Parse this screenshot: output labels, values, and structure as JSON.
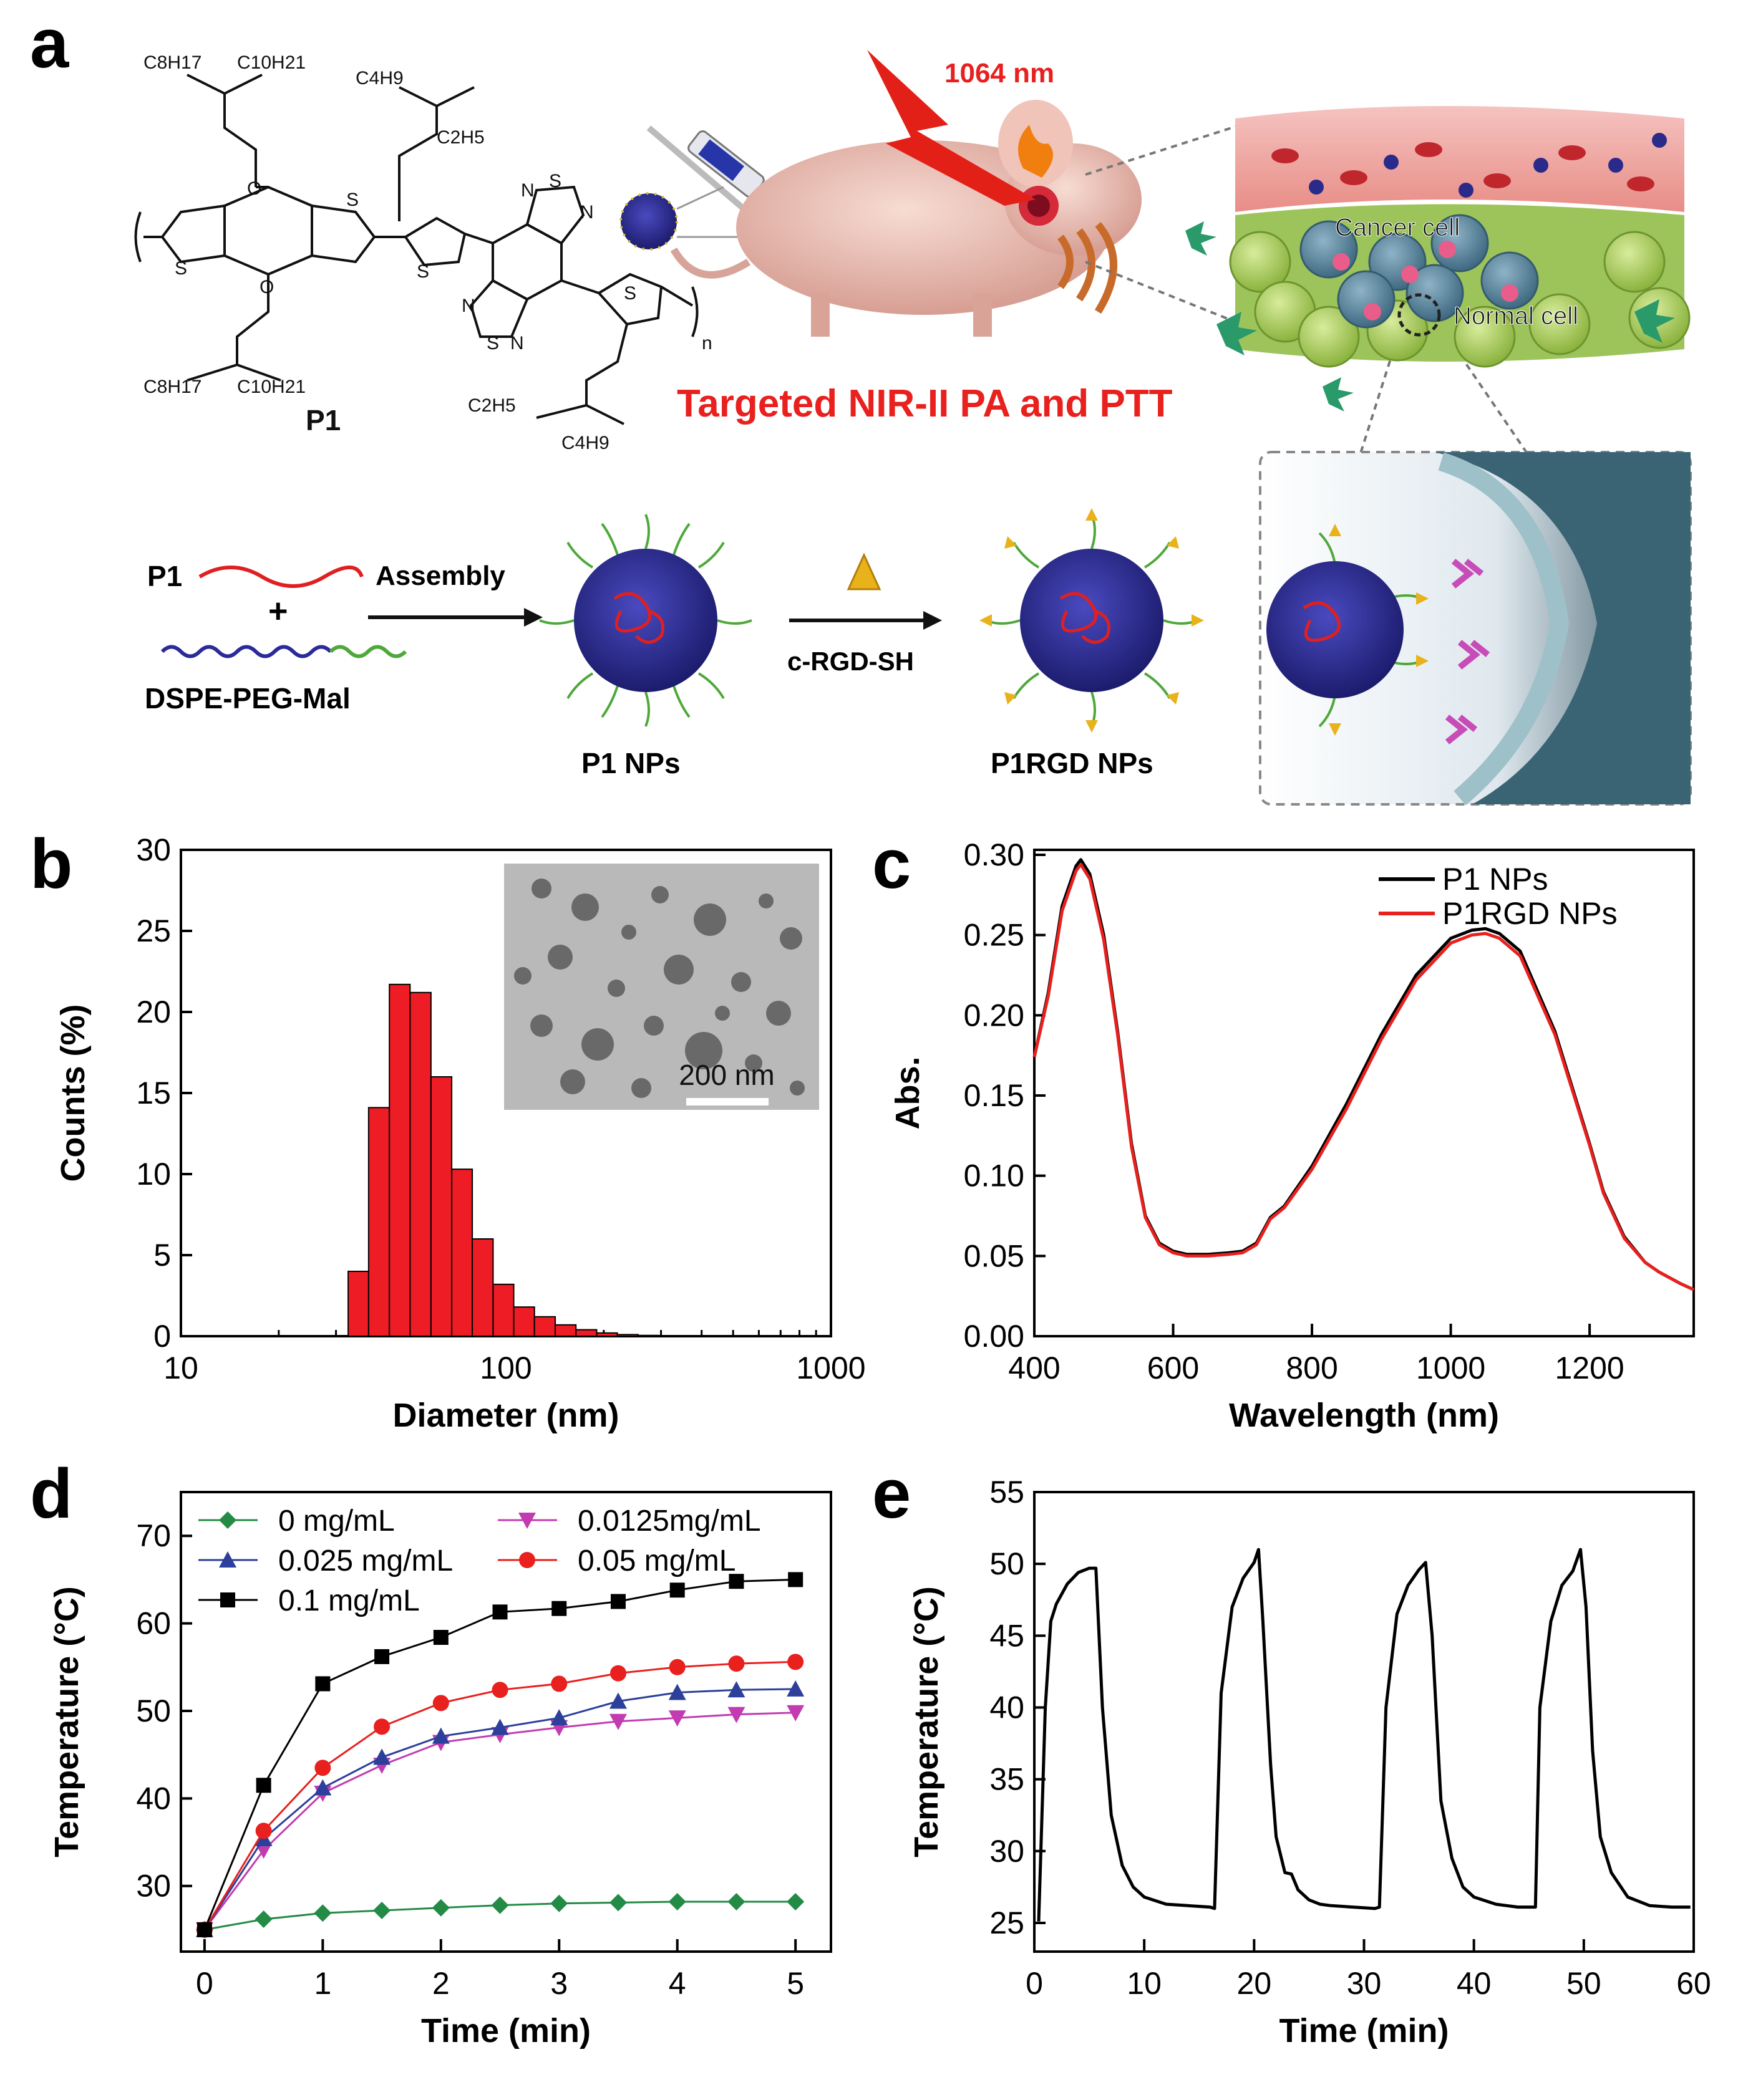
{
  "panel_letters": {
    "a": "a",
    "b": "b",
    "c": "c",
    "d": "d",
    "e": "e"
  },
  "panel_a": {
    "chem": {
      "label": "P1",
      "sub_c8h17": "C8H17",
      "sub_c10h21": "C10H21",
      "sub_c4h9": "C4H9",
      "sub_c2h5": "C2H5",
      "atom_o": "O",
      "atom_s": "S",
      "atom_n": "N",
      "repeat_n": "n"
    },
    "laser": "1064 nm",
    "caption": "Targeted NIR-II PA and PTT",
    "tissue_labels": {
      "cancer": "Cancer cell",
      "normal": "Normal cell"
    },
    "scheme": {
      "p1": "P1",
      "plus": "+",
      "dspe": "DSPE-PEG-Mal",
      "assembly": "Assembly",
      "rgd": "c-RGD-SH",
      "p1nps": "P1 NPs",
      "p1rgdnps": "P1RGD NPs"
    },
    "colors": {
      "caption": "#e8201e",
      "polymer": "#e02020",
      "peg": "#4fa83a",
      "dspe": "#2a2a9a",
      "core": "#2a2a9a"
    }
  },
  "chart_data": [
    {
      "panel": "b",
      "type": "bar",
      "xlabel": "Diameter (nm)",
      "ylabel": "Counts (%)",
      "xscale": "log",
      "xlim": [
        10,
        1000
      ],
      "ylim": [
        0,
        30
      ],
      "xticks": [
        "10",
        "100",
        "1000"
      ],
      "yticks": [
        "0",
        "5",
        "10",
        "15",
        "20",
        "25",
        "30"
      ],
      "bin_edges": [
        32.7,
        37.8,
        43.8,
        50.7,
        58.8,
        68.1,
        78.8,
        91.3,
        105.7,
        122.4,
        141.8,
        164.2,
        190.2,
        220.2,
        255.0,
        295.3
      ],
      "values": [
        4.0,
        14.1,
        21.7,
        21.2,
        16.0,
        10.3,
        6.0,
        3.2,
        1.8,
        1.2,
        0.7,
        0.4,
        0.2,
        0.1,
        0.05
      ],
      "color": "#ee1c24",
      "inset": {
        "scale_bar": "200 nm"
      }
    },
    {
      "panel": "c",
      "type": "line",
      "xlabel": "Wavelength (nm)",
      "ylabel": "Abs.",
      "xlim": [
        400,
        1350
      ],
      "ylim": [
        0.0,
        0.3
      ],
      "xticks": [
        "400",
        "600",
        "800",
        "1000",
        "1200"
      ],
      "yticks": [
        "0.00",
        "0.05",
        "0.10",
        "0.15",
        "0.20",
        "0.25",
        "0.30"
      ],
      "legend_position": "top-right",
      "series": [
        {
          "name": "P1 NPs",
          "color": "#000000",
          "x": [
            400,
            420,
            440,
            460,
            467,
            480,
            500,
            520,
            540,
            560,
            580,
            600,
            620,
            650,
            680,
            700,
            720,
            740,
            760,
            800,
            850,
            900,
            950,
            1000,
            1030,
            1050,
            1070,
            1100,
            1150,
            1200,
            1220,
            1250,
            1280,
            1300,
            1330,
            1350
          ],
          "y": [
            0.174,
            0.214,
            0.268,
            0.293,
            0.297,
            0.288,
            0.25,
            0.19,
            0.12,
            0.075,
            0.058,
            0.053,
            0.051,
            0.051,
            0.052,
            0.053,
            0.058,
            0.074,
            0.081,
            0.106,
            0.145,
            0.188,
            0.225,
            0.248,
            0.253,
            0.254,
            0.251,
            0.24,
            0.19,
            0.12,
            0.09,
            0.062,
            0.046,
            0.04,
            0.033,
            0.029
          ]
        },
        {
          "name": "P1RGD NPs",
          "color": "#e8201e",
          "x": [
            400,
            420,
            440,
            460,
            467,
            480,
            500,
            520,
            540,
            560,
            580,
            600,
            620,
            650,
            680,
            700,
            720,
            740,
            760,
            800,
            850,
            900,
            950,
            1000,
            1030,
            1050,
            1070,
            1100,
            1150,
            1200,
            1220,
            1250,
            1280,
            1300,
            1330,
            1350
          ],
          "y": [
            0.174,
            0.212,
            0.265,
            0.29,
            0.294,
            0.285,
            0.247,
            0.188,
            0.118,
            0.074,
            0.057,
            0.052,
            0.05,
            0.05,
            0.051,
            0.052,
            0.057,
            0.073,
            0.08,
            0.104,
            0.142,
            0.185,
            0.222,
            0.245,
            0.25,
            0.251,
            0.248,
            0.237,
            0.188,
            0.119,
            0.089,
            0.061,
            0.046,
            0.04,
            0.033,
            0.029
          ]
        }
      ]
    },
    {
      "panel": "d",
      "type": "line",
      "xlabel": "Time (min)",
      "ylabel": "Temperature (°C)",
      "xlim": [
        -0.2,
        5.3
      ],
      "ylim": [
        22.5,
        75
      ],
      "xticks": [
        "0",
        "1",
        "2",
        "3",
        "4",
        "5"
      ],
      "yticks": [
        "30",
        "40",
        "50",
        "60",
        "70"
      ],
      "legend_position": "top-left",
      "x": [
        0,
        0.5,
        1,
        1.5,
        2,
        2.5,
        3,
        3.5,
        4,
        4.5,
        5
      ],
      "series": [
        {
          "name": "0 mg/mL",
          "color": "#238b45",
          "marker": "diamond",
          "values": [
            25.0,
            26.2,
            26.9,
            27.2,
            27.5,
            27.8,
            28.0,
            28.1,
            28.2,
            28.2,
            28.2
          ]
        },
        {
          "name": "0.0125mg/mL",
          "color": "#c23bb0",
          "marker": "triangle-down",
          "values": [
            25.0,
            34.1,
            40.6,
            43.8,
            46.4,
            47.3,
            48.1,
            48.8,
            49.2,
            49.6,
            49.8
          ]
        },
        {
          "name": "0.025 mg/mL",
          "color": "#2c3f9a",
          "marker": "triangle-up",
          "values": [
            25.0,
            35.4,
            41.2,
            44.7,
            47.1,
            48.1,
            49.2,
            51.1,
            52.1,
            52.4,
            52.5
          ]
        },
        {
          "name": "0.05 mg/mL",
          "color": "#e8201e",
          "marker": "circle",
          "values": [
            25.0,
            36.3,
            43.5,
            48.2,
            50.9,
            52.4,
            53.1,
            54.3,
            55.0,
            55.4,
            55.6
          ]
        },
        {
          "name": "0.1 mg/mL",
          "color": "#000000",
          "marker": "square",
          "values": [
            25.0,
            41.5,
            53.1,
            56.2,
            58.4,
            61.3,
            61.7,
            62.5,
            63.8,
            64.8,
            65.0
          ]
        }
      ]
    },
    {
      "panel": "e",
      "type": "line",
      "xlabel": "Time (min)",
      "ylabel": "Temperature (°C)",
      "xlim": [
        0,
        60
      ],
      "ylim": [
        23,
        55
      ],
      "xticks": [
        "0",
        "10",
        "20",
        "30",
        "40",
        "50",
        "60"
      ],
      "yticks": [
        "25",
        "30",
        "35",
        "40",
        "45",
        "50",
        "55"
      ],
      "series": [
        {
          "name": "",
          "color": "#000000",
          "x": [
            0.4,
            1,
            1.5,
            2,
            3,
            4,
            5,
            5.6,
            6.2,
            7,
            8,
            9,
            10,
            12,
            14,
            16,
            16.4,
            17,
            18,
            19,
            20,
            20.4,
            20.8,
            21.5,
            22,
            22.8,
            23.4,
            24,
            25,
            26,
            27,
            29,
            31,
            31.4,
            32,
            33,
            34,
            35,
            35.6,
            36.2,
            37,
            38,
            39,
            40,
            42,
            44,
            45.6,
            46,
            47,
            48,
            49,
            49.7,
            50.2,
            50.8,
            51.5,
            52.5,
            54,
            56,
            58,
            59.7
          ],
          "y": [
            25.1,
            40.0,
            46.0,
            47.2,
            48.6,
            49.4,
            49.7,
            49.7,
            40.0,
            32.5,
            29.0,
            27.5,
            26.8,
            26.3,
            26.2,
            26.1,
            26.0,
            41.0,
            47.0,
            49.0,
            50.1,
            51.0,
            46.0,
            36.0,
            31.0,
            28.5,
            28.4,
            27.3,
            26.6,
            26.3,
            26.2,
            26.1,
            26.0,
            26.1,
            40.0,
            46.5,
            48.5,
            49.6,
            50.1,
            45.0,
            33.5,
            29.5,
            27.5,
            26.8,
            26.3,
            26.1,
            26.1,
            40.0,
            46.0,
            48.5,
            49.5,
            51.0,
            47.0,
            37.0,
            31.0,
            28.5,
            26.8,
            26.2,
            26.1,
            26.1
          ]
        }
      ]
    }
  ]
}
